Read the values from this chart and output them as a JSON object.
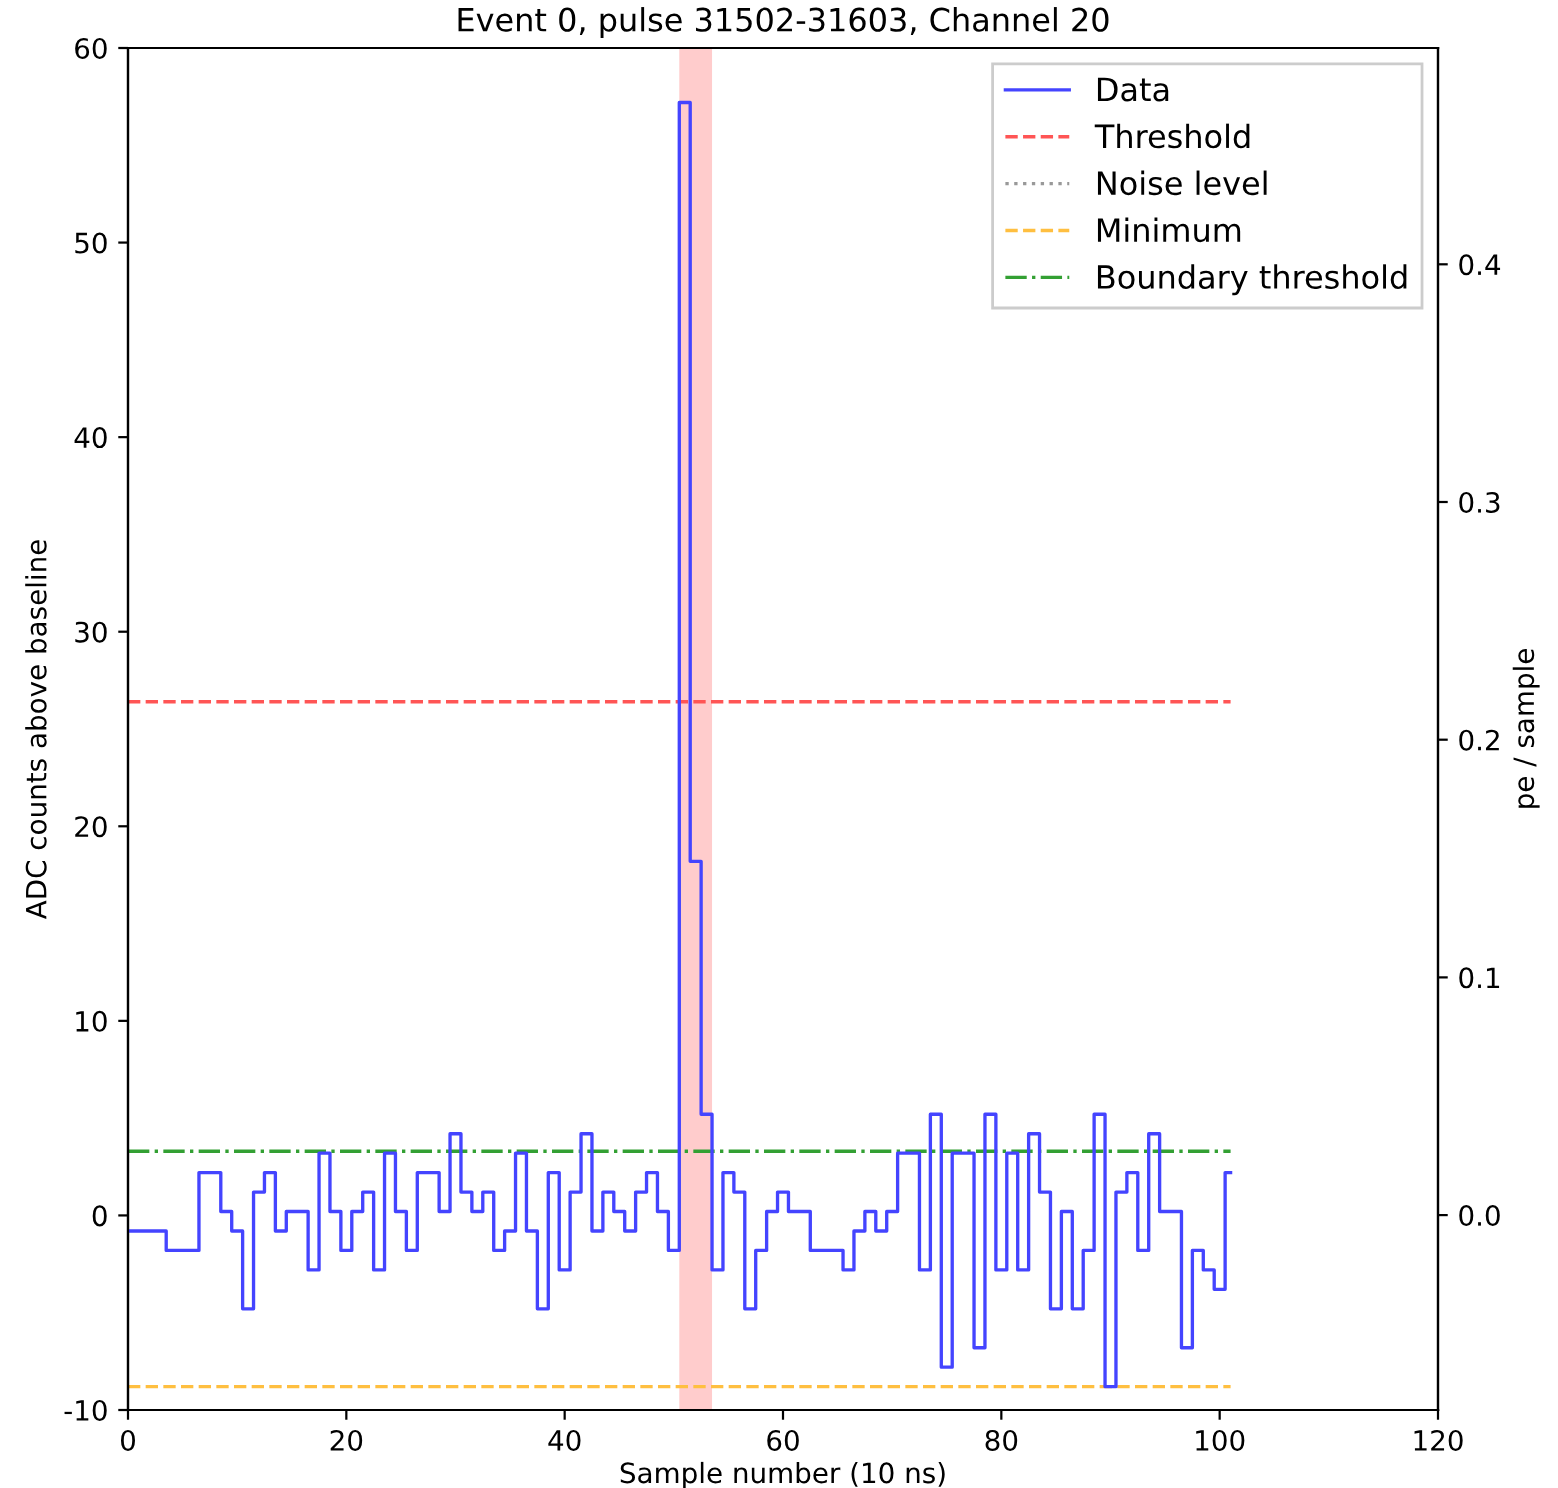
{
  "chart_data": {
    "type": "step",
    "title": "Event 0, pulse 31502-31603, Channel 20",
    "xlabel": "Sample number (10 ns)",
    "ylabel": "ADC counts above baseline",
    "y2label": "pe / sample",
    "x": [
      0,
      1,
      2,
      3,
      4,
      5,
      6,
      7,
      8,
      9,
      10,
      11,
      12,
      13,
      14,
      15,
      16,
      17,
      18,
      19,
      20,
      21,
      22,
      23,
      24,
      25,
      26,
      27,
      28,
      29,
      30,
      31,
      32,
      33,
      34,
      35,
      36,
      37,
      38,
      39,
      40,
      41,
      42,
      43,
      44,
      45,
      46,
      47,
      48,
      49,
      50,
      51,
      52,
      53,
      54,
      55,
      56,
      57,
      58,
      59,
      60,
      61,
      62,
      63,
      64,
      65,
      66,
      67,
      68,
      69,
      70,
      71,
      72,
      73,
      74,
      75,
      76,
      77,
      78,
      79,
      80,
      81,
      82,
      83,
      84,
      85,
      86,
      87,
      88,
      89,
      90,
      91,
      92,
      93,
      94,
      95,
      96,
      97,
      98,
      99,
      100,
      101
    ],
    "series": [
      {
        "name": "Data",
        "color": "#4444ff",
        "values": [
          -0.8,
          -0.8,
          -0.8,
          -0.8,
          -1.8,
          -1.8,
          -1.8,
          2.2,
          2.2,
          0.2,
          -0.8,
          -4.8,
          1.2,
          2.2,
          -0.8,
          0.2,
          0.2,
          -2.8,
          3.2,
          0.2,
          -1.8,
          0.2,
          1.2,
          -2.8,
          3.2,
          0.2,
          -1.8,
          2.2,
          2.2,
          0.2,
          4.2,
          1.2,
          0.2,
          1.2,
          -1.8,
          -0.8,
          3.2,
          -0.8,
          -4.8,
          2.2,
          -2.8,
          1.2,
          4.2,
          -0.8,
          1.2,
          0.2,
          -0.8,
          1.2,
          2.2,
          0.2,
          -1.8,
          57.2,
          18.2,
          5.2,
          -2.8,
          2.2,
          1.2,
          -4.8,
          -1.8,
          0.2,
          1.2,
          0.2,
          0.2,
          -1.8,
          -1.8,
          -1.8,
          -2.8,
          -0.8,
          0.2,
          -0.8,
          0.2,
          3.2,
          3.2,
          -2.8,
          5.2,
          -7.8,
          3.2,
          3.2,
          -6.8,
          5.2,
          -2.8,
          3.2,
          -2.8,
          4.2,
          1.2,
          -4.8,
          0.2,
          -4.8,
          -1.8,
          5.2,
          -8.8,
          1.2,
          2.2,
          -1.8,
          4.2,
          0.2,
          0.2,
          -6.8,
          -1.8,
          -2.8,
          -3.8,
          2.2
        ]
      }
    ],
    "ref_lines": [
      {
        "axis": "y",
        "value": 26.4,
        "label": "Threshold",
        "color": "#ff5555",
        "line_style": "dashed"
      },
      {
        "axis": "y",
        "value": null,
        "label": "Noise level",
        "color": "#999999",
        "line_style": "dotted"
      },
      {
        "axis": "y",
        "value": -8.8,
        "label": "Minimum",
        "color": "#ffbf40",
        "line_style": "dashed"
      },
      {
        "axis": "y",
        "value": 3.3,
        "label": "Boundary threshold",
        "color": "#33a033",
        "line_style": "dashdot"
      }
    ],
    "bands": [
      {
        "axis": "x",
        "from": 50.5,
        "to": 53.5,
        "color": "#ffcccc"
      }
    ],
    "xlim": [
      0,
      120
    ],
    "xticks": [
      0,
      20,
      40,
      60,
      80,
      100,
      120
    ],
    "ylim": [
      -10,
      60
    ],
    "yticks": [
      -10,
      0,
      10,
      20,
      30,
      40,
      50,
      60
    ],
    "y2lim": [
      -0.082,
      0.491
    ],
    "y2ticks": [
      {
        "value": 0,
        "label": "0.0"
      },
      {
        "value": 0.1,
        "label": "0.1"
      },
      {
        "value": 0.2,
        "label": "0.2"
      },
      {
        "value": 0.3,
        "label": "0.3"
      },
      {
        "value": 0.4,
        "label": "0.4"
      }
    ],
    "legend": "top right",
    "grid": false
  }
}
